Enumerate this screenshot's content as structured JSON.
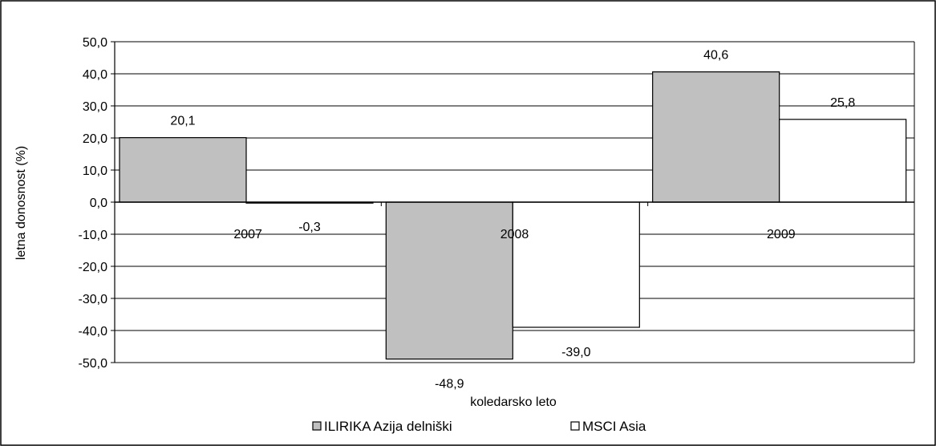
{
  "chart_data": {
    "type": "bar",
    "title": "",
    "xlabel": "koledarsko leto",
    "ylabel": "letna donosnost (%)",
    "categories": [
      "2007",
      "2008",
      "2009"
    ],
    "ylim": [
      -50,
      50
    ],
    "yticks": [
      "50,0",
      "40,0",
      "30,0",
      "20,0",
      "10,0",
      "0,0",
      "-10,0",
      "-20,0",
      "-30,0",
      "-40,0",
      "-50,0"
    ],
    "ytick_values": [
      50,
      40,
      30,
      20,
      10,
      0,
      -10,
      -20,
      -30,
      -40,
      -50
    ],
    "grid": true,
    "legend_position": "bottom",
    "series": [
      {
        "name": "ILIRIKA Azija delniški",
        "values": [
          20.1,
          -48.9,
          40.6
        ],
        "labels": [
          "20,1",
          "-48,9",
          "40,6"
        ],
        "color": "#c0c0c0"
      },
      {
        "name": "MSCI Asia",
        "values": [
          -0.3,
          -39.0,
          25.8
        ],
        "labels": [
          "-0,3",
          "-39,0",
          "25,8"
        ],
        "color": "#ffffff"
      }
    ]
  }
}
